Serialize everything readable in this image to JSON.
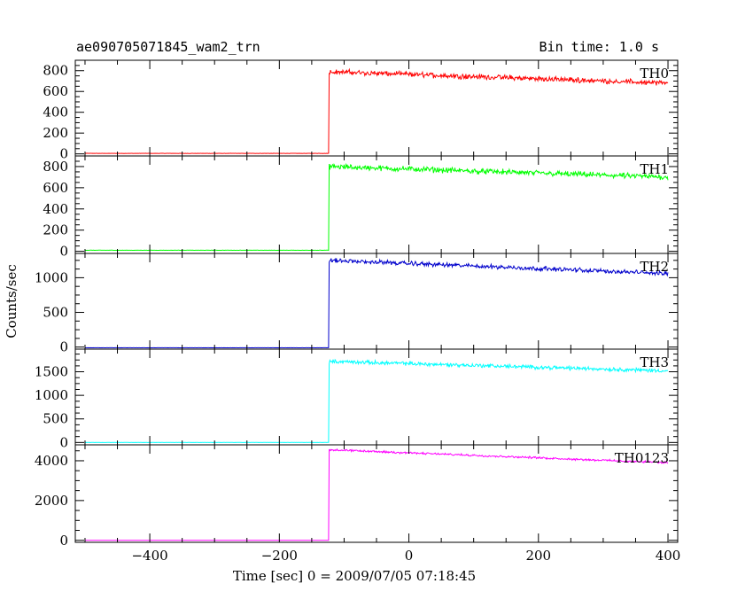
{
  "header": {
    "title": "ae090705071845_wam2_trn",
    "bin_time": "Bin time: 1.0 s"
  },
  "chart_data": {
    "type": "line",
    "title": "ae090705071845_wam2_trn",
    "subtitle": "Bin time: 1.0 s",
    "xlabel": "Time [sec] 0 = 2009/07/05 07:18:45",
    "ylabel": "Counts/sec",
    "xlim": [
      -515,
      415
    ],
    "x_ticks": [
      -400,
      -200,
      0,
      200,
      400
    ],
    "x_tick_labels": [
      "−400",
      "−200",
      "0",
      "200",
      "400"
    ],
    "x_range_data": [
      -500,
      400
    ],
    "trigger_time": -123,
    "panels": [
      {
        "name": "TH0",
        "color": "#ff0000",
        "ylim": [
          -20,
          900
        ],
        "ticks": [
          0,
          200,
          400,
          600,
          800
        ],
        "tick_labels": [
          "0",
          "200",
          "400",
          "600",
          "800"
        ],
        "pre_level": 5,
        "post_start": 790,
        "post_end": 680,
        "noise": 30
      },
      {
        "name": "TH1",
        "color": "#00ff00",
        "ylim": [
          -20,
          900
        ],
        "ticks": [
          0,
          200,
          400,
          600,
          800
        ],
        "tick_labels": [
          "0",
          "200",
          "400",
          "600",
          "800"
        ],
        "pre_level": 10,
        "post_start": 800,
        "post_end": 700,
        "noise": 32
      },
      {
        "name": "TH2",
        "color": "#0000cc",
        "ylim": [
          -30,
          1350
        ],
        "ticks": [
          0,
          500,
          1000
        ],
        "tick_labels": [
          "0",
          "500",
          "1000"
        ],
        "pre_level": -10,
        "post_start": 1250,
        "post_end": 1060,
        "noise": 38
      },
      {
        "name": "TH3",
        "color": "#00ffff",
        "ylim": [
          -50,
          1980
        ],
        "ticks": [
          0,
          500,
          1000,
          1500
        ],
        "tick_labels": [
          "0",
          "500",
          "1000",
          "1500"
        ],
        "pre_level": 0,
        "post_start": 1720,
        "post_end": 1520,
        "noise": 50
      },
      {
        "name": "TH0123",
        "color": "#ff00ff",
        "ylim": [
          -100,
          4800
        ],
        "ticks": [
          0,
          2000,
          4000
        ],
        "tick_labels": [
          "0",
          "2000",
          "4000"
        ],
        "pre_level": 0,
        "post_start": 4550,
        "post_end": 3900,
        "noise": 60
      }
    ]
  }
}
